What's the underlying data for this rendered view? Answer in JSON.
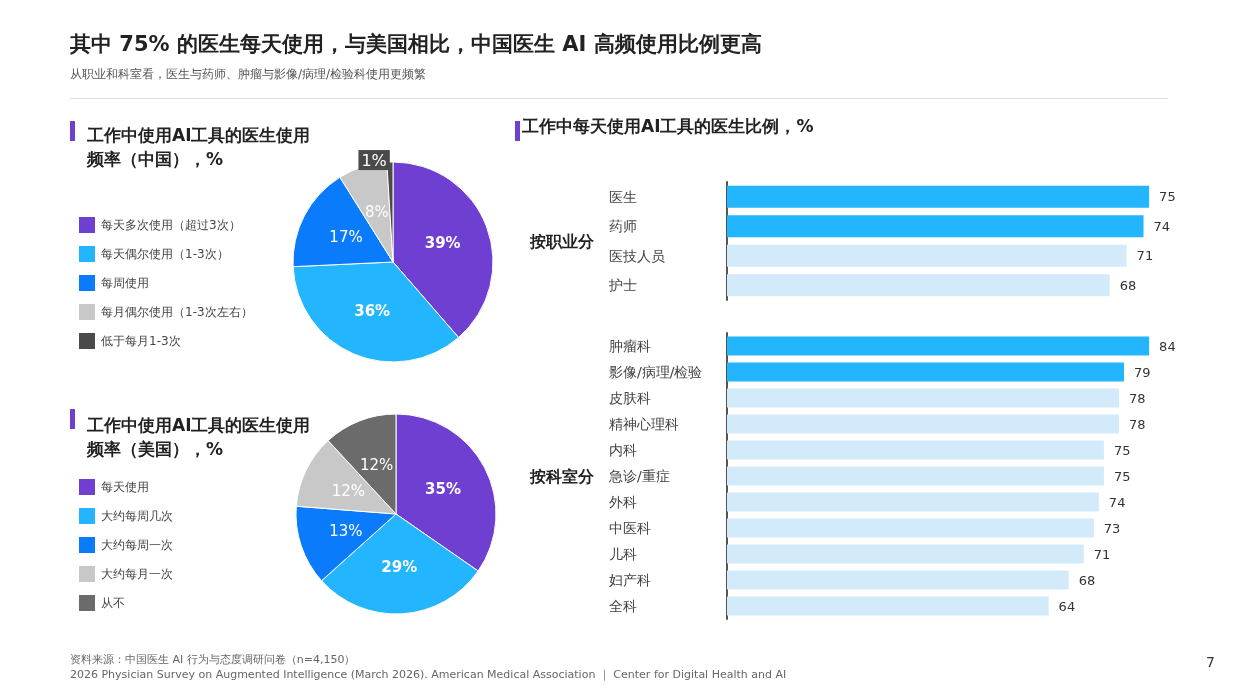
{
  "chart_data": [
    {
      "type": "other",
      "title": "其中 75% 的医生每天使用，与美国相比，中国医生 AI 高频使用比例更高",
      "subtitle": "从职业和科室看，医生与药师、肿瘤与影像/病理/检验科使用更频繁",
      "annotations": [
        "资料来源：中国医生 AI 行为与态度调研问卷（n=4,150）",
        "2026 Physician Survey on Augmented Intelligence (March 2026). American Medical Association ｜ Center for Digital Health and AI",
        "7"
      ]
    },
    {
      "type": "pie",
      "title": "工作中使用AI工具的医生使用频率（中国），%",
      "categories": [
        "每天多次使用（超过3次）",
        "每天偶尔使用（1-3次）",
        "每周使用",
        "每月偶尔使用（1-3次左右）",
        "低于每月1-3次"
      ],
      "values": [
        39,
        36,
        17,
        8,
        1
      ],
      "colors": [
        "#6e3fd1",
        "#23b5fd",
        "#0a7cfb",
        "#c8c8c8",
        "#4a4a4a"
      ],
      "value_labels": [
        "39%",
        "36%",
        "17%",
        "8%",
        "1%"
      ],
      "legend": "left"
    },
    {
      "type": "pie",
      "title": "工作中使用AI工具的医生使用频率（美国），%",
      "categories": [
        "每天使用",
        "大约每周几次",
        "大约每周一次",
        "大约每月一次",
        "从不"
      ],
      "values": [
        35,
        29,
        13,
        12,
        12
      ],
      "colors": [
        "#6e3fd1",
        "#23b5fd",
        "#0a7cfb",
        "#c8c8c8",
        "#6b6b6b"
      ],
      "value_labels": [
        "35%",
        "29%",
        "13%",
        "12%",
        "12%"
      ],
      "legend": "left"
    },
    {
      "type": "bar",
      "orientation": "horizontal",
      "title": "工作中每天使用AI工具的医生比例，%",
      "ylabel": "按职业分",
      "categories": [
        "医生",
        "药师",
        "医技人员",
        "护士"
      ],
      "values": [
        75,
        74,
        71,
        68
      ],
      "colors": [
        "#23b5fd",
        "#23b5fd",
        "#d3eafa",
        "#d3eafa"
      ],
      "data_labels": true
    },
    {
      "type": "bar",
      "orientation": "horizontal",
      "ylabel": "按科室分",
      "categories": [
        "肿瘤科",
        "影像/病理/检验",
        "皮肤科",
        "精神心理科",
        "内科",
        "急诊/重症",
        "外科",
        "中医科",
        "儿科",
        "妇产科",
        "全科"
      ],
      "values": [
        84,
        79,
        78,
        78,
        75,
        75,
        74,
        73,
        71,
        68,
        64
      ],
      "colors": [
        "#23b5fd",
        "#23b5fd",
        "#d3eafa",
        "#d3eafa",
        "#d3eafa",
        "#d3eafa",
        "#d3eafa",
        "#d3eafa",
        "#d3eafa",
        "#d3eafa",
        "#d3eafa"
      ],
      "data_labels": true
    }
  ]
}
